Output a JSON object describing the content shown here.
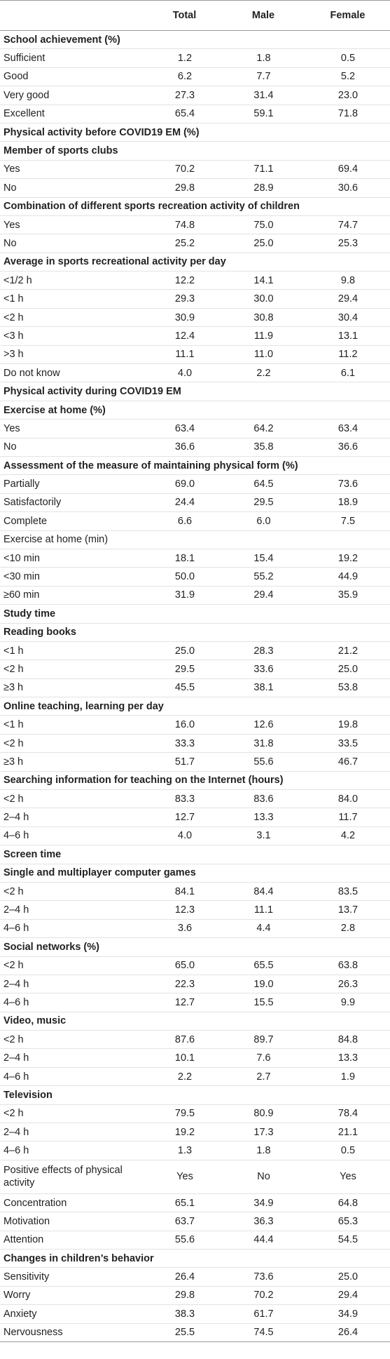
{
  "header": {
    "label": "",
    "total": "Total",
    "male": "Male",
    "female": "Female"
  },
  "rows": [
    {
      "type": "section",
      "label": "School achievement (%)"
    },
    {
      "type": "data",
      "label": "Sufficient",
      "total": "1.2",
      "male": "1.8",
      "female": "0.5"
    },
    {
      "type": "data",
      "label": "Good",
      "total": "6.2",
      "male": "7.7",
      "female": "5.2"
    },
    {
      "type": "data",
      "label": "Very good",
      "total": "27.3",
      "male": "31.4",
      "female": "23.0"
    },
    {
      "type": "data",
      "label": "Excellent",
      "total": "65.4",
      "male": "59.1",
      "female": "71.8"
    },
    {
      "type": "section",
      "label": "Physical activity before COVID19 EM (%)"
    },
    {
      "type": "section",
      "label": "Member of sports clubs"
    },
    {
      "type": "data",
      "label": "Yes",
      "total": "70.2",
      "male": "71.1",
      "female": "69.4"
    },
    {
      "type": "data",
      "label": "No",
      "total": "29.8",
      "male": "28.9",
      "female": "30.6"
    },
    {
      "type": "section",
      "label": "Combination of different sports recreation activity of children"
    },
    {
      "type": "data",
      "label": "Yes",
      "total": "74.8",
      "male": "75.0",
      "female": "74.7"
    },
    {
      "type": "data",
      "label": "No",
      "total": "25.2",
      "male": "25.0",
      "female": "25.3"
    },
    {
      "type": "section",
      "label": "Average in sports recreational activity per day"
    },
    {
      "type": "data",
      "label": "<1/2 h",
      "total": "12.2",
      "male": "14.1",
      "female": "9.8"
    },
    {
      "type": "data",
      "label": "<1 h",
      "total": "29.3",
      "male": "30.0",
      "female": "29.4"
    },
    {
      "type": "data",
      "label": "<2 h",
      "total": "30.9",
      "male": "30.8",
      "female": "30.4"
    },
    {
      "type": "data",
      "label": "<3 h",
      "total": "12.4",
      "male": "11.9",
      "female": "13.1"
    },
    {
      "type": "data",
      "label": ">3 h",
      "total": "11.1",
      "male": "11.0",
      "female": "11.2"
    },
    {
      "type": "data",
      "label": "Do not know",
      "total": "4.0",
      "male": "2.2",
      "female": "6.1"
    },
    {
      "type": "section",
      "label": "Physical activity during COVID19 EM"
    },
    {
      "type": "section",
      "label": "Exercise at home (%)"
    },
    {
      "type": "data",
      "label": "Yes",
      "total": "63.4",
      "male": "64.2",
      "female": "63.4"
    },
    {
      "type": "data",
      "label": "No",
      "total": "36.6",
      "male": "35.8",
      "female": "36.6"
    },
    {
      "type": "section",
      "label": "Assessment of the measure of maintaining physical form (%)"
    },
    {
      "type": "data",
      "label": "Partially",
      "total": "69.0",
      "male": "64.5",
      "female": "73.6"
    },
    {
      "type": "data",
      "label": "Satisfactorily",
      "total": "24.4",
      "male": "29.5",
      "female": "18.9"
    },
    {
      "type": "data",
      "label": "Complete",
      "total": "6.6",
      "male": "6.0",
      "female": "7.5"
    },
    {
      "type": "data",
      "label": "Exercise at home (min)",
      "total": "",
      "male": "",
      "female": ""
    },
    {
      "type": "data",
      "label": "<10 min",
      "total": "18.1",
      "male": "15.4",
      "female": "19.2"
    },
    {
      "type": "data",
      "label": "<30 min",
      "total": "50.0",
      "male": "55.2",
      "female": "44.9"
    },
    {
      "type": "data",
      "label": "≥60 min",
      "total": "31.9",
      "male": "29.4",
      "female": "35.9"
    },
    {
      "type": "section",
      "label": "Study time"
    },
    {
      "type": "section",
      "label": "Reading books"
    },
    {
      "type": "data",
      "label": "<1 h",
      "total": "25.0",
      "male": "28.3",
      "female": "21.2"
    },
    {
      "type": "data",
      "label": "<2 h",
      "total": "29.5",
      "male": "33.6",
      "female": "25.0"
    },
    {
      "type": "data",
      "label": "≥3 h",
      "total": "45.5",
      "male": "38.1",
      "female": "53.8"
    },
    {
      "type": "section",
      "label": "Online teaching, learning per day"
    },
    {
      "type": "data",
      "label": "<1 h",
      "total": "16.0",
      "male": "12.6",
      "female": "19.8"
    },
    {
      "type": "data",
      "label": "<2 h",
      "total": "33.3",
      "male": "31.8",
      "female": "33.5"
    },
    {
      "type": "data",
      "label": "≥3 h",
      "total": "51.7",
      "male": "55.6",
      "female": "46.7"
    },
    {
      "type": "section",
      "label": "Searching information for teaching on the Internet (hours)"
    },
    {
      "type": "data",
      "label": "<2 h",
      "total": "83.3",
      "male": "83.6",
      "female": "84.0"
    },
    {
      "type": "data",
      "label": "2–4 h",
      "total": "12.7",
      "male": "13.3",
      "female": "11.7"
    },
    {
      "type": "data",
      "label": "4–6 h",
      "total": "4.0",
      "male": "3.1",
      "female": "4.2"
    },
    {
      "type": "section",
      "label": "Screen time"
    },
    {
      "type": "section",
      "label": "Single and multiplayer computer games"
    },
    {
      "type": "data",
      "label": "<2 h",
      "total": "84.1",
      "male": "84.4",
      "female": "83.5"
    },
    {
      "type": "data",
      "label": "2–4 h",
      "total": "12.3",
      "male": "11.1",
      "female": "13.7"
    },
    {
      "type": "data",
      "label": "4–6 h",
      "total": "3.6",
      "male": "4.4",
      "female": "2.8"
    },
    {
      "type": "section",
      "label": "Social networks (%)"
    },
    {
      "type": "data",
      "label": "<2 h",
      "total": "65.0",
      "male": "65.5",
      "female": "63.8"
    },
    {
      "type": "data",
      "label": "2–4 h",
      "total": "22.3",
      "male": "19.0",
      "female": "26.3"
    },
    {
      "type": "data",
      "label": "4–6 h",
      "total": "12.7",
      "male": "15.5",
      "female": "9.9"
    },
    {
      "type": "section",
      "label": "Video, music"
    },
    {
      "type": "data",
      "label": "<2 h",
      "total": "87.6",
      "male": "89.7",
      "female": "84.8"
    },
    {
      "type": "data",
      "label": "2–4 h",
      "total": "10.1",
      "male": "7.6",
      "female": "13.3"
    },
    {
      "type": "data",
      "label": "4–6 h",
      "total": "2.2",
      "male": "2.7",
      "female": "1.9"
    },
    {
      "type": "section",
      "label": "Television"
    },
    {
      "type": "data",
      "label": "<2 h",
      "total": "79.5",
      "male": "80.9",
      "female": "78.4"
    },
    {
      "type": "data",
      "label": "2–4 h",
      "total": "19.2",
      "male": "17.3",
      "female": "21.1"
    },
    {
      "type": "data",
      "label": "4–6 h",
      "total": "1.3",
      "male": "1.8",
      "female": "0.5"
    },
    {
      "type": "wrap",
      "label": "Positive effects of physical activity",
      "total": "Yes",
      "male": "No",
      "female": "Yes"
    },
    {
      "type": "data",
      "label": "Concentration",
      "total": "65.1",
      "male": "34.9",
      "female": "64.8"
    },
    {
      "type": "data",
      "label": "Motivation",
      "total": "63.7",
      "male": "36.3",
      "female": "65.3"
    },
    {
      "type": "data",
      "label": "Attention",
      "total": "55.6",
      "male": "44.4",
      "female": "54.5"
    },
    {
      "type": "section",
      "label": "Changes in children’s behavior"
    },
    {
      "type": "data",
      "label": "Sensitivity",
      "total": "26.4",
      "male": "73.6",
      "female": "25.0"
    },
    {
      "type": "data",
      "label": "Worry",
      "total": "29.8",
      "male": "70.2",
      "female": "29.4"
    },
    {
      "type": "data",
      "label": "Anxiety",
      "total": "38.3",
      "male": "61.7",
      "female": "34.9"
    },
    {
      "type": "data",
      "label": "Nervousness",
      "total": "25.5",
      "male": "74.5",
      "female": "26.4"
    }
  ]
}
